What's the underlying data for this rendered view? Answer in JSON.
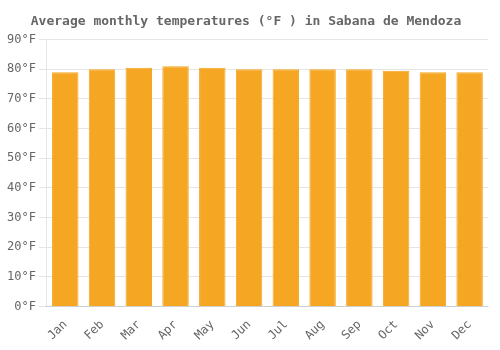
{
  "chart_data": {
    "type": "bar",
    "title": "Average monthly temperatures (°F ) in Sabana de Mendoza",
    "categories": [
      "Jan",
      "Feb",
      "Mar",
      "Apr",
      "May",
      "Jun",
      "Jul",
      "Aug",
      "Sep",
      "Oct",
      "Nov",
      "Dec"
    ],
    "values": [
      79,
      80,
      80.5,
      81,
      80.5,
      80,
      80,
      80,
      80,
      79.5,
      79,
      79
    ],
    "color": "#F5A623",
    "ylim": [
      0,
      90
    ],
    "yticks": [
      {
        "value": 0,
        "label": "0°F"
      },
      {
        "value": 10,
        "label": "10°F"
      },
      {
        "value": 20,
        "label": "20°F"
      },
      {
        "value": 30,
        "label": "30°F"
      },
      {
        "value": 40,
        "label": "40°F"
      },
      {
        "value": 50,
        "label": "50°F"
      },
      {
        "value": 60,
        "label": "60°F"
      },
      {
        "value": 70,
        "label": "70°F"
      },
      {
        "value": 80,
        "label": "80°F"
      },
      {
        "value": 90,
        "label": "90°F"
      }
    ],
    "grid": true
  }
}
